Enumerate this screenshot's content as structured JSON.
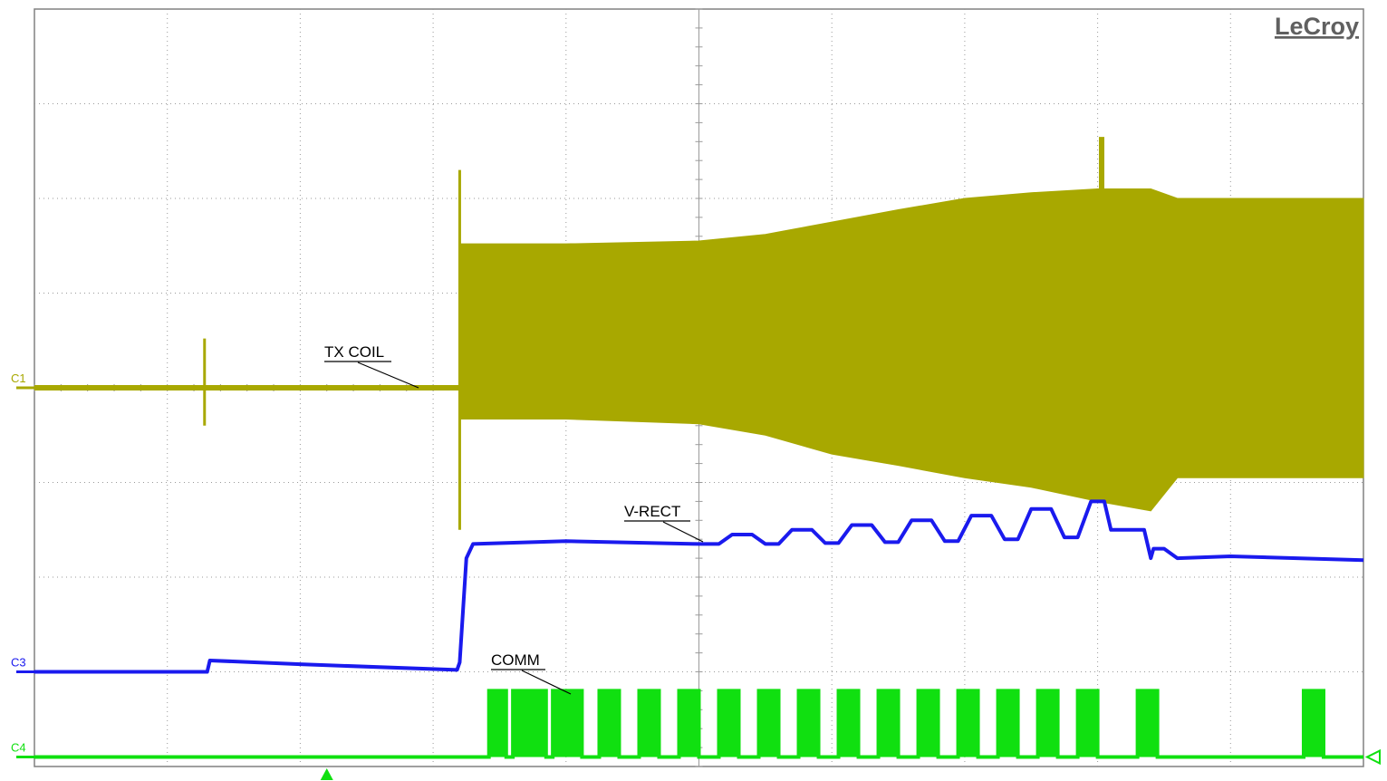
{
  "brand": "LeCroy",
  "colors": {
    "background": "#ffffff",
    "grid": "#9a9a9a",
    "frame": "#808080",
    "ch1": "#a8a800",
    "ch3": "#1a1aee",
    "ch4": "#10e010",
    "annotation": "#000000"
  },
  "chart_data": {
    "type": "line",
    "title": "",
    "grid": true,
    "divisions": {
      "x": 10,
      "y": 8
    },
    "xlim": [
      0,
      10
    ],
    "ylim": [
      -4,
      4
    ],
    "trigger_marker": {
      "x": 2.2,
      "shape": "up-triangle"
    },
    "channels": [
      {
        "id": "C1",
        "label": "TX COIL",
        "offset_div": 0.0,
        "baseline_segments": [
          [
            0,
            3.2
          ]
        ],
        "glitches": [
          {
            "x": 1.28,
            "top": 0.52,
            "bottom": -0.4
          },
          {
            "x": 3.2,
            "top": 2.3,
            "bottom": -1.5
          }
        ],
        "envelope": {
          "x": [
            3.2,
            4.0,
            5.0,
            5.5,
            6.0,
            6.5,
            7.0,
            7.5,
            8.0,
            8.4,
            8.6,
            9.0,
            10.0
          ],
          "top": [
            1.52,
            1.52,
            1.55,
            1.62,
            1.75,
            1.88,
            2.0,
            2.06,
            2.1,
            2.1,
            2.0,
            2.0,
            2.0
          ],
          "bottom": [
            -0.33,
            -0.33,
            -0.38,
            -0.5,
            -0.7,
            -0.82,
            -0.95,
            -1.05,
            -1.2,
            -1.3,
            -0.95,
            -0.95,
            -0.95
          ]
        },
        "spike": {
          "x": 8.03,
          "top": 2.65,
          "bottom": -0.85
        }
      },
      {
        "id": "C3",
        "label": "V-RECT",
        "offset_div": -3.0,
        "points": [
          [
            0,
            0.0
          ],
          [
            1.3,
            0.0
          ],
          [
            1.32,
            0.12
          ],
          [
            2.0,
            0.08
          ],
          [
            3.18,
            0.02
          ],
          [
            3.2,
            0.1
          ],
          [
            3.25,
            1.2
          ],
          [
            3.3,
            1.35
          ],
          [
            4.0,
            1.38
          ],
          [
            5.0,
            1.35
          ],
          [
            5.15,
            1.35
          ],
          [
            5.25,
            1.45
          ],
          [
            5.4,
            1.45
          ],
          [
            5.5,
            1.35
          ],
          [
            5.6,
            1.35
          ],
          [
            5.7,
            1.5
          ],
          [
            5.85,
            1.5
          ],
          [
            5.95,
            1.36
          ],
          [
            6.05,
            1.36
          ],
          [
            6.15,
            1.55
          ],
          [
            6.3,
            1.55
          ],
          [
            6.4,
            1.37
          ],
          [
            6.5,
            1.37
          ],
          [
            6.6,
            1.6
          ],
          [
            6.75,
            1.6
          ],
          [
            6.85,
            1.38
          ],
          [
            6.95,
            1.38
          ],
          [
            7.05,
            1.65
          ],
          [
            7.2,
            1.65
          ],
          [
            7.3,
            1.4
          ],
          [
            7.4,
            1.4
          ],
          [
            7.5,
            1.72
          ],
          [
            7.65,
            1.72
          ],
          [
            7.75,
            1.42
          ],
          [
            7.85,
            1.42
          ],
          [
            7.95,
            1.8
          ],
          [
            8.05,
            1.8
          ],
          [
            8.1,
            1.5
          ],
          [
            8.35,
            1.5
          ],
          [
            8.4,
            1.2
          ],
          [
            8.42,
            1.3
          ],
          [
            8.5,
            1.3
          ],
          [
            8.6,
            1.2
          ],
          [
            9.0,
            1.22
          ],
          [
            10.0,
            1.18
          ]
        ]
      },
      {
        "id": "C4",
        "label": "COMM",
        "offset_div": -3.9,
        "low": 0.0,
        "high": 0.7,
        "pulses": [
          [
            3.42,
            3.55
          ],
          [
            3.6,
            3.85
          ],
          [
            3.9,
            4.12
          ],
          [
            4.25,
            4.4
          ],
          [
            4.55,
            4.7
          ],
          [
            4.85,
            5.0
          ],
          [
            5.15,
            5.3
          ],
          [
            5.45,
            5.6
          ],
          [
            5.75,
            5.9
          ],
          [
            6.05,
            6.2
          ],
          [
            6.35,
            6.5
          ],
          [
            6.65,
            6.8
          ],
          [
            6.95,
            7.1
          ],
          [
            7.25,
            7.4
          ],
          [
            7.55,
            7.7
          ],
          [
            7.85,
            8.0
          ],
          [
            8.3,
            8.45
          ],
          [
            9.55,
            9.7
          ]
        ]
      }
    ],
    "callouts": [
      "TX COIL",
      "V-RECT",
      "COMM"
    ]
  }
}
